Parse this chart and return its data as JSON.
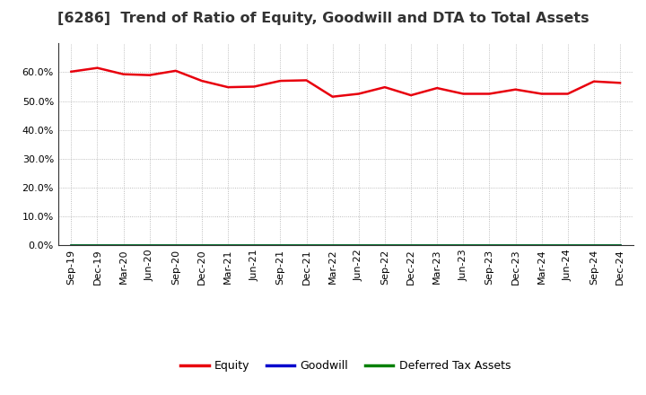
{
  "title": "[6286]  Trend of Ratio of Equity, Goodwill and DTA to Total Assets",
  "x_labels": [
    "Sep-19",
    "Dec-19",
    "Mar-20",
    "Jun-20",
    "Sep-20",
    "Dec-20",
    "Mar-21",
    "Jun-21",
    "Sep-21",
    "Dec-21",
    "Mar-22",
    "Jun-22",
    "Sep-22",
    "Dec-22",
    "Mar-23",
    "Jun-23",
    "Sep-23",
    "Dec-23",
    "Mar-24",
    "Jun-24",
    "Sep-24",
    "Dec-24"
  ],
  "equity": [
    60.2,
    61.5,
    59.3,
    59.0,
    60.5,
    57.0,
    54.8,
    55.0,
    57.0,
    57.2,
    51.5,
    52.5,
    54.8,
    52.0,
    54.5,
    52.5,
    52.5,
    54.0,
    52.5,
    52.5,
    56.8,
    56.3
  ],
  "goodwill": [
    0.0,
    0.0,
    0.0,
    0.0,
    0.0,
    0.0,
    0.0,
    0.0,
    0.0,
    0.0,
    0.0,
    0.0,
    0.0,
    0.0,
    0.0,
    0.0,
    0.0,
    0.0,
    0.0,
    0.0,
    0.0,
    0.0
  ],
  "deferred_tax": [
    0.0,
    0.0,
    0.0,
    0.0,
    0.0,
    0.0,
    0.0,
    0.0,
    0.0,
    0.0,
    0.0,
    0.0,
    0.0,
    0.0,
    0.0,
    0.0,
    0.0,
    0.0,
    0.0,
    0.0,
    0.0,
    0.0
  ],
  "equity_color": "#e8000d",
  "goodwill_color": "#0000cd",
  "dta_color": "#008000",
  "ylim": [
    0,
    70
  ],
  "yticks": [
    0,
    10,
    20,
    30,
    40,
    50,
    60
  ],
  "background_color": "#ffffff",
  "plot_bg_color": "#ffffff",
  "grid_color": "#aaaaaa",
  "title_fontsize": 11.5,
  "tick_fontsize": 8,
  "legend_entries": [
    "Equity",
    "Goodwill",
    "Deferred Tax Assets"
  ]
}
